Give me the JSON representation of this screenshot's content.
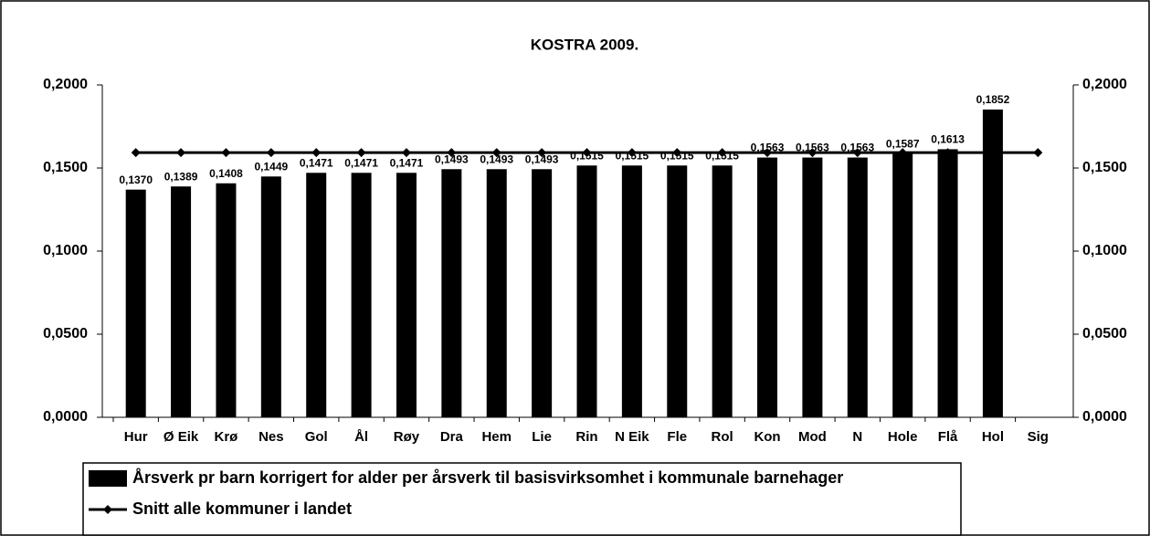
{
  "chart_data": {
    "type": "bar_line",
    "title": "KOSTRA 2009.",
    "categories": [
      "Hur",
      "Ø Eik",
      "Krø",
      "Nes",
      "Gol",
      "Ål",
      "Røy",
      "Dra",
      "Hem",
      "Lie",
      "Rin",
      "N Eik",
      "Fle",
      "Rol",
      "Kon",
      "Mod",
      "N",
      "Hole",
      "Flå",
      "Hol",
      "Sig"
    ],
    "series": [
      {
        "name": "Årsverk pr barn korrigert for alder per årsverk til basisvirksomhet i kommunale barnehager",
        "type": "bar",
        "color": "#000000",
        "values": [
          0.137,
          0.1389,
          0.1408,
          0.1449,
          0.1471,
          0.1471,
          0.1471,
          0.1493,
          0.1493,
          0.1493,
          0.1515,
          0.1515,
          0.1515,
          0.1515,
          0.1563,
          0.1563,
          0.1563,
          0.1587,
          0.1613,
          0.1852,
          null
        ],
        "value_labels": [
          "0,1370",
          "0,1389",
          "0,1408",
          "0,1449",
          "0,1471",
          "0,1471",
          "0,1471",
          "0,1493",
          "0,1493",
          "0,1493",
          "0,1515",
          "0,1515",
          "0,1515",
          "0,1515",
          "0,1563",
          "0,1563",
          "0,1563",
          "0,1587",
          "0,1613",
          "0,1852",
          null
        ]
      },
      {
        "name": "Snitt alle kommuner i landet",
        "type": "line",
        "color": "#000000",
        "values": [
          0.1593,
          0.1593,
          0.1593,
          0.1593,
          0.1593,
          0.1593,
          0.1593,
          0.1593,
          0.1593,
          0.1593,
          0.1593,
          0.1593,
          0.1593,
          0.1593,
          0.1593,
          0.1593,
          0.1593,
          0.1593,
          0.1593,
          0.1593,
          0.1593
        ]
      }
    ],
    "ylim": [
      0,
      0.2
    ],
    "yticks": [
      {
        "value": 0,
        "label": "0,0000"
      },
      {
        "value": 0.05,
        "label": "0,0500"
      },
      {
        "value": 0.1,
        "label": "0,1000"
      },
      {
        "value": 0.15,
        "label": "0,1500"
      },
      {
        "value": 0.2,
        "label": "0,2000"
      }
    ],
    "y2lim": [
      0,
      0.2
    ],
    "y2ticks": [
      {
        "value": 0,
        "label": "0,0000"
      },
      {
        "value": 0.05,
        "label": "0,0500"
      },
      {
        "value": 0.1,
        "label": "0,1000"
      },
      {
        "value": 0.15,
        "label": "0,1500"
      },
      {
        "value": 0.2,
        "label": "0,2000"
      }
    ],
    "grid": false,
    "legend": "bottom"
  }
}
